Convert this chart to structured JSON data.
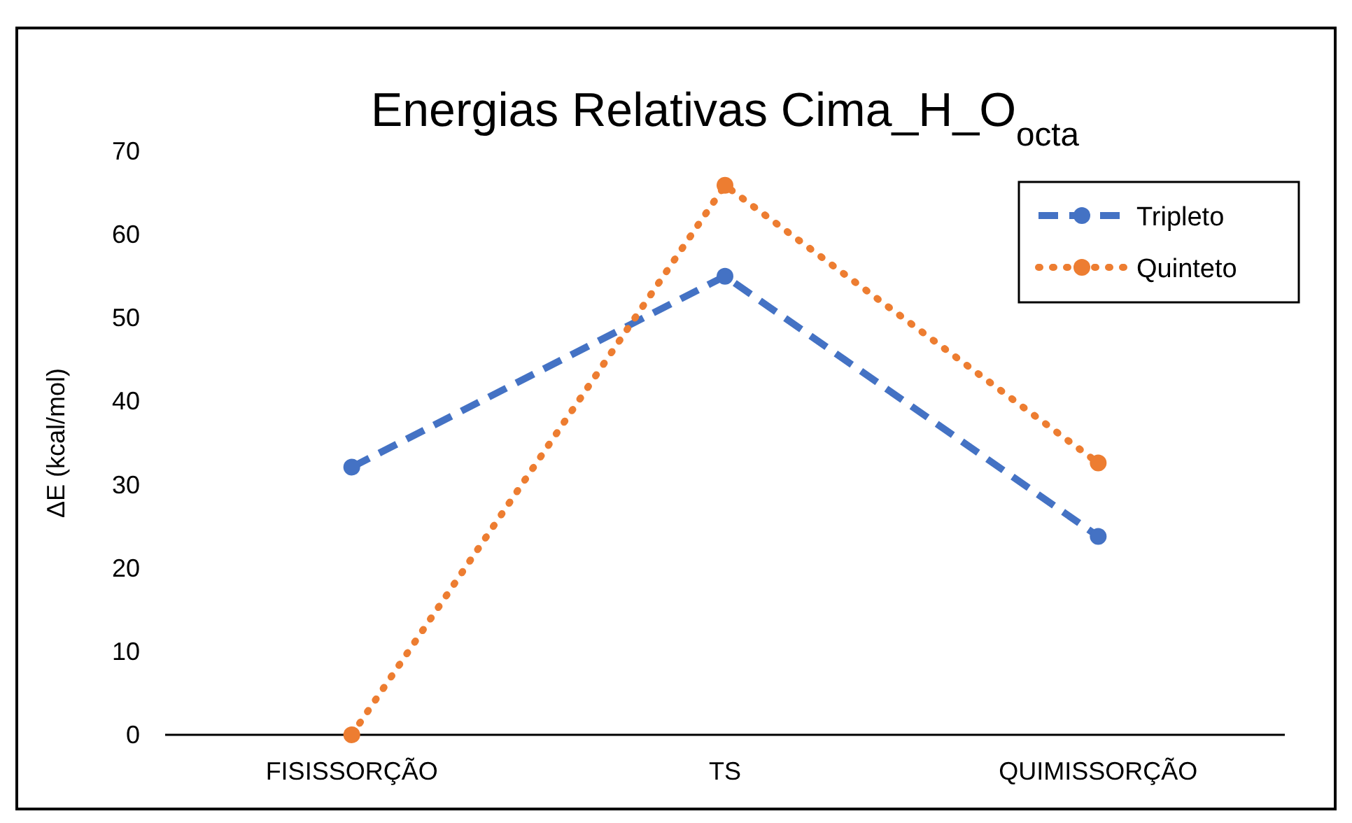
{
  "chart_data": {
    "type": "line",
    "title": "Energias Relativas Cima_H_O$_{octa}$",
    "ylabel": "ΔE (kcal/mol)",
    "categories": [
      "FISISSORÇÃO",
      "TS",
      "QUIMISSORÇÃO"
    ],
    "series": [
      {
        "name": "Tripleto",
        "color": "#4472c4",
        "values": [
          32.1,
          55.0,
          23.8
        ],
        "line_style": "dashed",
        "marker": "circle"
      },
      {
        "name": "Quinteto",
        "color": "#ed7d31",
        "values": [
          0,
          65.9,
          32.6
        ],
        "line_style": "dotted",
        "marker": "circle"
      }
    ],
    "ylim": [
      0,
      70
    ],
    "yticks": [
      0,
      10,
      20,
      30,
      40,
      50,
      60,
      70
    ],
    "grid": false,
    "legend": "top right"
  }
}
